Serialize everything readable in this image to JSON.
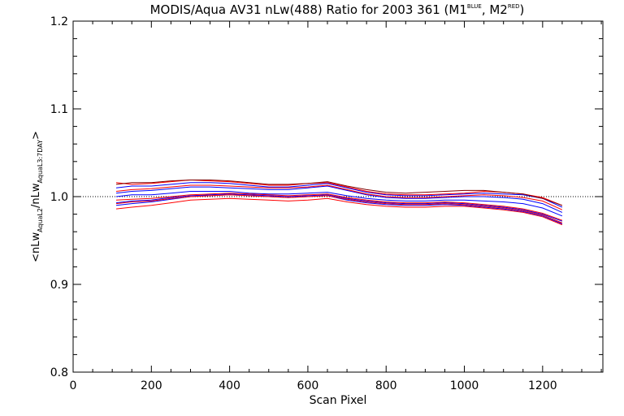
{
  "chart_data": {
    "type": "line",
    "title": {
      "main": "MODIS/Aqua AV31 nLw(488) Ratio for 2003 361 (M1",
      "sup1": "BLUE",
      "mid": ", M2",
      "sup2": "RED",
      "end": ")"
    },
    "xlabel": "Scan Pixel",
    "ylabel": {
      "p1": "<nLw",
      "s1": "AquaL2",
      "p2": "/nLw",
      "s2": "AquaL3:7DAY",
      "p3": ">"
    },
    "xlim": [
      0,
      1354
    ],
    "ylim": [
      0.8,
      1.2
    ],
    "xticks": [
      0,
      200,
      400,
      600,
      800,
      1000,
      1200
    ],
    "yticks": [
      "0.8",
      "0.9",
      "1.0",
      "1.1",
      "1.2"
    ],
    "reference_line": 1.0,
    "grid": false,
    "colors": {
      "blue": "#0000ff",
      "red": "#ff0000",
      "maroon": "#800000",
      "reference": "#000000"
    },
    "x": [
      110,
      150,
      200,
      250,
      300,
      350,
      400,
      450,
      500,
      550,
      600,
      650,
      700,
      750,
      800,
      850,
      900,
      950,
      1000,
      1050,
      1100,
      1150,
      1200,
      1250
    ],
    "series": [
      {
        "color": "blue",
        "values": [
          0.99,
          0.992,
          0.994,
          0.997,
          1.0,
          1.001,
          1.002,
          1.001,
          1.0,
          0.999,
          1.0,
          1.001,
          0.996,
          0.993,
          0.991,
          0.99,
          0.99,
          0.991,
          0.99,
          0.988,
          0.986,
          0.983,
          0.978,
          0.969
        ]
      },
      {
        "color": "blue",
        "values": [
          0.993,
          0.995,
          0.996,
          0.999,
          1.001,
          1.002,
          1.003,
          1.002,
          1.001,
          1.0,
          1.001,
          1.002,
          0.998,
          0.995,
          0.993,
          0.992,
          0.992,
          0.993,
          0.992,
          0.99,
          0.988,
          0.985,
          0.98,
          0.972
        ]
      },
      {
        "color": "blue",
        "values": [
          1.0,
          1.002,
          1.002,
          1.004,
          1.006,
          1.006,
          1.006,
          1.004,
          1.003,
          1.003,
          1.004,
          1.005,
          1.001,
          0.998,
          0.996,
          0.995,
          0.995,
          0.996,
          0.996,
          0.995,
          0.994,
          0.992,
          0.987,
          0.978
        ]
      },
      {
        "color": "blue",
        "values": [
          1.004,
          1.006,
          1.007,
          1.009,
          1.011,
          1.011,
          1.01,
          1.009,
          1.008,
          1.008,
          1.01,
          1.012,
          1.007,
          1.002,
          0.999,
          0.998,
          0.998,
          0.999,
          1.0,
          1.0,
          0.999,
          0.997,
          0.992,
          0.982
        ]
      },
      {
        "color": "blue",
        "values": [
          1.01,
          1.012,
          1.012,
          1.014,
          1.016,
          1.016,
          1.015,
          1.013,
          1.011,
          1.011,
          1.013,
          1.015,
          1.01,
          1.005,
          1.002,
          1.001,
          1.001,
          1.002,
          1.003,
          1.004,
          1.003,
          1.002,
          0.998,
          0.988
        ]
      },
      {
        "color": "red",
        "values": [
          0.992,
          0.994,
          0.995,
          0.998,
          1.0,
          1.001,
          1.002,
          1.001,
          1.0,
          0.999,
          1.0,
          1.001,
          0.997,
          0.994,
          0.992,
          0.991,
          0.991,
          0.992,
          0.991,
          0.989,
          0.987,
          0.984,
          0.979,
          0.97
        ]
      },
      {
        "color": "red",
        "values": [
          0.996,
          0.997,
          0.998,
          1.0,
          1.002,
          1.003,
          1.004,
          1.003,
          1.002,
          1.001,
          1.002,
          1.003,
          0.999,
          0.996,
          0.994,
          0.993,
          0.993,
          0.994,
          0.993,
          0.991,
          0.989,
          0.986,
          0.981,
          0.973
        ]
      },
      {
        "color": "red",
        "values": [
          0.986,
          0.988,
          0.99,
          0.993,
          0.996,
          0.997,
          0.998,
          0.997,
          0.996,
          0.995,
          0.996,
          0.998,
          0.994,
          0.991,
          0.989,
          0.988,
          0.988,
          0.989,
          0.989,
          0.987,
          0.985,
          0.982,
          0.977,
          0.968
        ]
      },
      {
        "color": "red",
        "values": [
          1.006,
          1.008,
          1.009,
          1.011,
          1.013,
          1.013,
          1.012,
          1.011,
          1.01,
          1.01,
          1.011,
          1.013,
          1.008,
          1.003,
          1.0,
          0.999,
          0.999,
          1.0,
          1.001,
          1.002,
          1.001,
          0.999,
          0.995,
          0.985
        ]
      },
      {
        "color": "red",
        "values": [
          1.016,
          1.014,
          1.015,
          1.017,
          1.019,
          1.018,
          1.017,
          1.015,
          1.013,
          1.013,
          1.015,
          1.016,
          1.011,
          1.006,
          1.003,
          1.002,
          1.002,
          1.003,
          1.004,
          1.006,
          1.005,
          1.003,
          0.999,
          0.99
        ]
      },
      {
        "color": "maroon",
        "values": [
          1.014,
          1.016,
          1.016,
          1.018,
          1.019,
          1.019,
          1.018,
          1.016,
          1.014,
          1.014,
          1.015,
          1.017,
          1.012,
          1.008,
          1.005,
          1.004,
          1.005,
          1.006,
          1.007,
          1.007,
          1.005,
          1.003,
          0.998,
          0.99
        ]
      }
    ]
  }
}
